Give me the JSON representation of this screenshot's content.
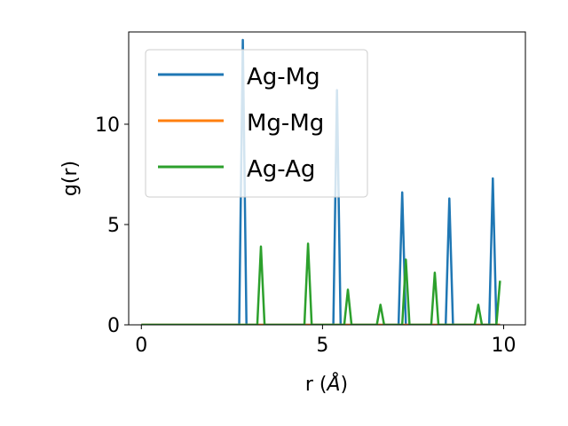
{
  "chart_data": {
    "type": "line",
    "xlabel": "r (",
    "xlabel_symbol": "Å",
    "xlabel_close": ")",
    "ylabel": "g(r)",
    "xlim": [
      -0.35,
      10.6
    ],
    "ylim": [
      0,
      14.6
    ],
    "xticks": [
      0,
      5,
      10
    ],
    "xtick_labels": [
      "0",
      "5",
      "10"
    ],
    "yticks": [
      0,
      5,
      10
    ],
    "ytick_labels": [
      "0",
      "5",
      "10"
    ],
    "grid": false,
    "legend_position": "top-left",
    "series": [
      {
        "name": "Ag-Mg",
        "color": "#1f77b4",
        "x": [
          0.0,
          2.7,
          2.8,
          2.9,
          5.3,
          5.4,
          5.5,
          7.1,
          7.2,
          7.3,
          8.4,
          8.5,
          8.6,
          9.6,
          9.7,
          9.8,
          9.9
        ],
        "y": [
          0.0,
          0.0,
          14.2,
          0.0,
          0.0,
          11.7,
          0.0,
          0.0,
          6.6,
          0.0,
          0.0,
          6.3,
          0.0,
          0.0,
          7.3,
          0.0,
          0.0
        ]
      },
      {
        "name": "Mg-Mg",
        "color": "#ff7f0e",
        "x": [
          0.0,
          9.9
        ],
        "y": [
          0.0,
          0.0
        ]
      },
      {
        "name": "Ag-Ag",
        "color": "#2ca02c",
        "x": [
          0.0,
          3.2,
          3.3,
          3.4,
          4.5,
          4.6,
          4.7,
          5.6,
          5.7,
          5.8,
          6.5,
          6.6,
          6.7,
          7.2,
          7.3,
          7.4,
          8.0,
          8.1,
          8.2,
          9.2,
          9.3,
          9.4,
          9.8,
          9.9
        ],
        "y": [
          0.0,
          0.0,
          3.9,
          0.0,
          0.0,
          4.05,
          0.0,
          0.0,
          1.75,
          0.0,
          0.0,
          1.0,
          0.0,
          0.0,
          3.25,
          0.0,
          0.0,
          2.6,
          0.0,
          0.0,
          1.0,
          0.0,
          0.0,
          2.2
        ]
      }
    ]
  }
}
